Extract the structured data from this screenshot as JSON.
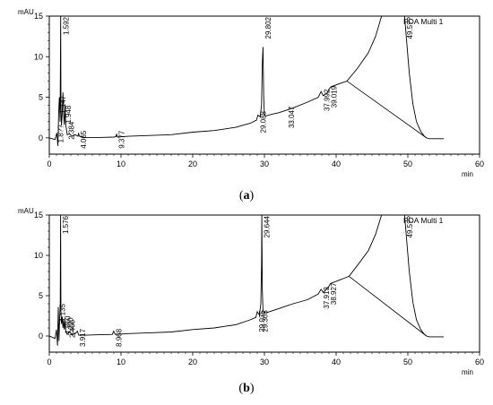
{
  "chart_data": [
    {
      "type": "line",
      "caption": {
        "open": "(",
        "letter": "a",
        "close": ")"
      },
      "legend": "PDA Multi 1",
      "y_unit": "mAU",
      "x_unit": "min",
      "xlim": [
        0,
        60
      ],
      "ylim": [
        -2,
        15
      ],
      "x_ticks": [
        "0",
        "10",
        "20",
        "30",
        "40",
        "50",
        "60"
      ],
      "y_ticks": [
        "0",
        "5",
        "10",
        "15"
      ],
      "series": [
        {
          "x": [
            0.0,
            0.8,
            1.05,
            1.2,
            1.3,
            1.4,
            1.5,
            1.55,
            1.59,
            1.63,
            1.7,
            1.8,
            1.9,
            2.0,
            2.1,
            2.2,
            2.3,
            2.5,
            2.8,
            3.2,
            3.6,
            4.0,
            4.07,
            4.2,
            5,
            7,
            9,
            9.3,
            9.38,
            9.5,
            11,
            14,
            17,
            20,
            23,
            26,
            28,
            28.9,
            29.09,
            29.4,
            29.6,
            29.7,
            29.8,
            29.9,
            30.0,
            30.2,
            31,
            32,
            33.05,
            34,
            36,
            37.5,
            37.9,
            38.2,
            38.8,
            39.0,
            39.3,
            41.5,
            43,
            44.5,
            45.5,
            46.5,
            48,
            49.5,
            50.2,
            50.7,
            51.2,
            51.8,
            52.3,
            52.6,
            53,
            55
          ],
          "y": [
            0.0,
            -0.2,
            0.6,
            -1.0,
            3.0,
            5.0,
            2.0,
            9.0,
            15.0,
            4.0,
            1.5,
            3.0,
            5.6,
            2.8,
            1.6,
            4.0,
            1.6,
            0.4,
            0.5,
            0.2,
            0.4,
            0.2,
            0.6,
            0.2,
            0.05,
            0.05,
            0.1,
            0.15,
            0.5,
            0.1,
            0.2,
            0.3,
            0.4,
            0.7,
            0.9,
            1.3,
            1.8,
            2.2,
            2.8,
            2.6,
            4.0,
            9.0,
            11.2,
            5.0,
            2.8,
            2.7,
            2.9,
            3.1,
            3.4,
            3.7,
            4.4,
            5.0,
            5.7,
            5.2,
            5.6,
            6.0,
            6.3,
            7.0,
            8.6,
            10.5,
            12.5,
            15.5,
            15.5,
            15.5,
            8.0,
            4.2,
            2.0,
            0.8,
            0.2,
            0.0,
            -0.1,
            -0.1
          ]
        }
      ],
      "baseline": {
        "x": [
          41.5,
          52.6
        ],
        "y": [
          7.0,
          0.0
        ]
      },
      "peak_labels": [
        {
          "text": "1.592",
          "x": 1.592,
          "y": 15.0
        },
        {
          "text": "1.147",
          "x": 1.147,
          "y": 5.2
        },
        {
          "text": "1.8??",
          "x": 0.87,
          "y": 1.6
        },
        {
          "text": "1.948",
          "x": 1.948,
          "y": 4.0
        },
        {
          "text": "2.384",
          "x": 2.384,
          "y": 2.0
        },
        {
          "text": "4.065",
          "x": 4.065,
          "y": 0.9
        },
        {
          "text": "9.377",
          "x": 9.377,
          "y": 0.9
        },
        {
          "text": "29.802",
          "x": 29.802,
          "y": 15.0
        },
        {
          "text": "29.088",
          "x": 29.088,
          "y": 3.3
        },
        {
          "text": "33.047",
          "x": 33.047,
          "y": 3.9
        },
        {
          "text": "37.992",
          "x": 37.992,
          "y": 6.0
        },
        {
          "text": "39.019",
          "x": 39.019,
          "y": 6.4
        },
        {
          "text": "49.5??",
          "x": 49.55,
          "y": 15.0
        }
      ]
    },
    {
      "type": "line",
      "caption": {
        "open": "(",
        "letter": "b",
        "close": ")"
      },
      "legend": "PDA Multi 1",
      "y_unit": "mAU",
      "x_unit": "min",
      "xlim": [
        0,
        60
      ],
      "ylim": [
        -2,
        15
      ],
      "x_ticks": [
        "0",
        "10",
        "20",
        "30",
        "40",
        "50",
        "60"
      ],
      "y_ticks": [
        "0",
        "5",
        "10",
        "15"
      ],
      "series": [
        {
          "x": [
            0.0,
            0.8,
            1.0,
            1.15,
            1.25,
            1.35,
            1.45,
            1.52,
            1.58,
            1.62,
            1.7,
            1.8,
            1.9,
            2.0,
            2.1,
            2.2,
            2.3,
            2.5,
            2.8,
            3.2,
            3.6,
            3.92,
            4.1,
            5,
            7,
            8.8,
            8.97,
            9.2,
            11,
            14,
            17,
            20,
            23,
            26,
            28,
            28.8,
            29.0,
            29.3,
            29.5,
            29.6,
            29.64,
            29.7,
            29.8,
            30.0,
            30.3,
            31,
            32,
            33,
            34,
            36,
            37.5,
            37.9,
            38.2,
            38.9,
            39.2,
            41.8,
            43,
            44.5,
            45.5,
            46.5,
            48,
            49.5,
            50.2,
            50.7,
            51.2,
            51.8,
            52.3,
            52.6,
            53,
            55
          ],
          "y": [
            0.0,
            -0.3,
            0.8,
            -1.2,
            3.6,
            -0.6,
            2.4,
            4.0,
            15.0,
            3.0,
            1.5,
            2.4,
            1.0,
            2.0,
            0.8,
            1.8,
            0.6,
            0.2,
            0.5,
            0.2,
            0.3,
            0.6,
            0.1,
            0.1,
            0.15,
            0.2,
            0.6,
            0.2,
            0.3,
            0.4,
            0.5,
            0.8,
            1.0,
            1.4,
            2.0,
            2.3,
            3.0,
            2.6,
            4.0,
            9.0,
            15.0,
            6.0,
            3.2,
            2.9,
            2.9,
            3.1,
            3.4,
            3.7,
            4.0,
            4.5,
            5.2,
            5.8,
            5.4,
            6.0,
            6.5,
            7.4,
            8.8,
            10.6,
            12.6,
            15.5,
            15.5,
            15.5,
            8.0,
            4.2,
            2.0,
            0.8,
            0.2,
            0.0,
            -0.1,
            -0.1
          ]
        }
      ],
      "baseline": {
        "x": [
          41.8,
          52.6
        ],
        "y": [
          7.4,
          0.0
        ]
      },
      "peak_labels": [
        {
          "text": "1.576",
          "x": 1.576,
          "y": 15.0
        },
        {
          "text": "1.135",
          "x": 1.135,
          "y": 4.0
        },
        {
          "text": "1.860",
          "x": 1.86,
          "y": 2.5
        },
        {
          "text": "2.220",
          "x": 2.22,
          "y": 2.3
        },
        {
          "text": "2.466",
          "x": 2.466,
          "y": 2.0
        },
        {
          "text": "3.917",
          "x": 3.917,
          "y": 0.9
        },
        {
          "text": "8.968",
          "x": 8.968,
          "y": 0.9
        },
        {
          "text": "29.644",
          "x": 29.644,
          "y": 15.0
        },
        {
          "text": "29.035",
          "x": 28.95,
          "y": 3.2
        },
        {
          "text": "29.305",
          "x": 29.35,
          "y": 3.2
        },
        {
          "text": "37.913",
          "x": 37.913,
          "y": 6.1
        },
        {
          "text": "38.927",
          "x": 38.927,
          "y": 6.6
        },
        {
          "text": "49.5??",
          "x": 49.55,
          "y": 15.0
        }
      ]
    }
  ]
}
